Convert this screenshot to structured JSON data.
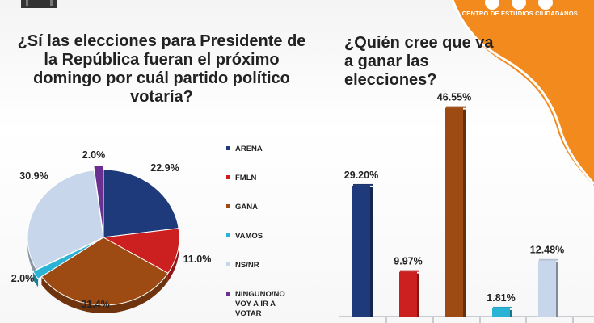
{
  "header": {
    "brand_text": "CENTRO DE ESTUDIOS CIUDADANOS",
    "accent_color": "#f28a1e"
  },
  "left_panel": {
    "question": "¿Sí las elecciones para Presidente de la República fueran el próximo domingo por cuál partido político votaría?"
  },
  "right_panel": {
    "question": "¿Quién cree que va a ganar las elecciones?"
  },
  "chart_data": [
    {
      "type": "pie",
      "title": "¿Sí las elecciones para Presidente de la República fueran el próximo domingo por cuál partido político votaría?",
      "categories": [
        "ARENA",
        "FMLN",
        "GANA",
        "VAMOS",
        "NS/NR",
        "NINGUNO/NO VOY A IR A VOTAR"
      ],
      "values": [
        22.9,
        11.0,
        31.4,
        2.0,
        30.9,
        2.0
      ],
      "labels": [
        "22.9%",
        "11.0%",
        "31.4%",
        "2.0%",
        "30.9%",
        "2.0%"
      ],
      "colors": [
        "#1f3a7a",
        "#cc1f1f",
        "#9e4a13",
        "#2bb3d6",
        "#c7d6ea",
        "#6b2f8f"
      ],
      "legend_position": "right",
      "start": "top, clockwise"
    },
    {
      "type": "bar",
      "title": "¿Quién cree que va a ganar las elecciones?",
      "values": [
        29.2,
        9.97,
        46.55,
        1.81,
        12.48
      ],
      "labels": [
        "29.20%",
        "9.97%",
        "46.55%",
        "1.81%",
        "12.48%"
      ],
      "colors": [
        "#1f3a7a",
        "#cc1f1f",
        "#9e4a13",
        "#2bb3d6",
        "#c7d6ea"
      ],
      "ylim": [
        0,
        50
      ],
      "grid": false,
      "legend": "none"
    }
  ]
}
